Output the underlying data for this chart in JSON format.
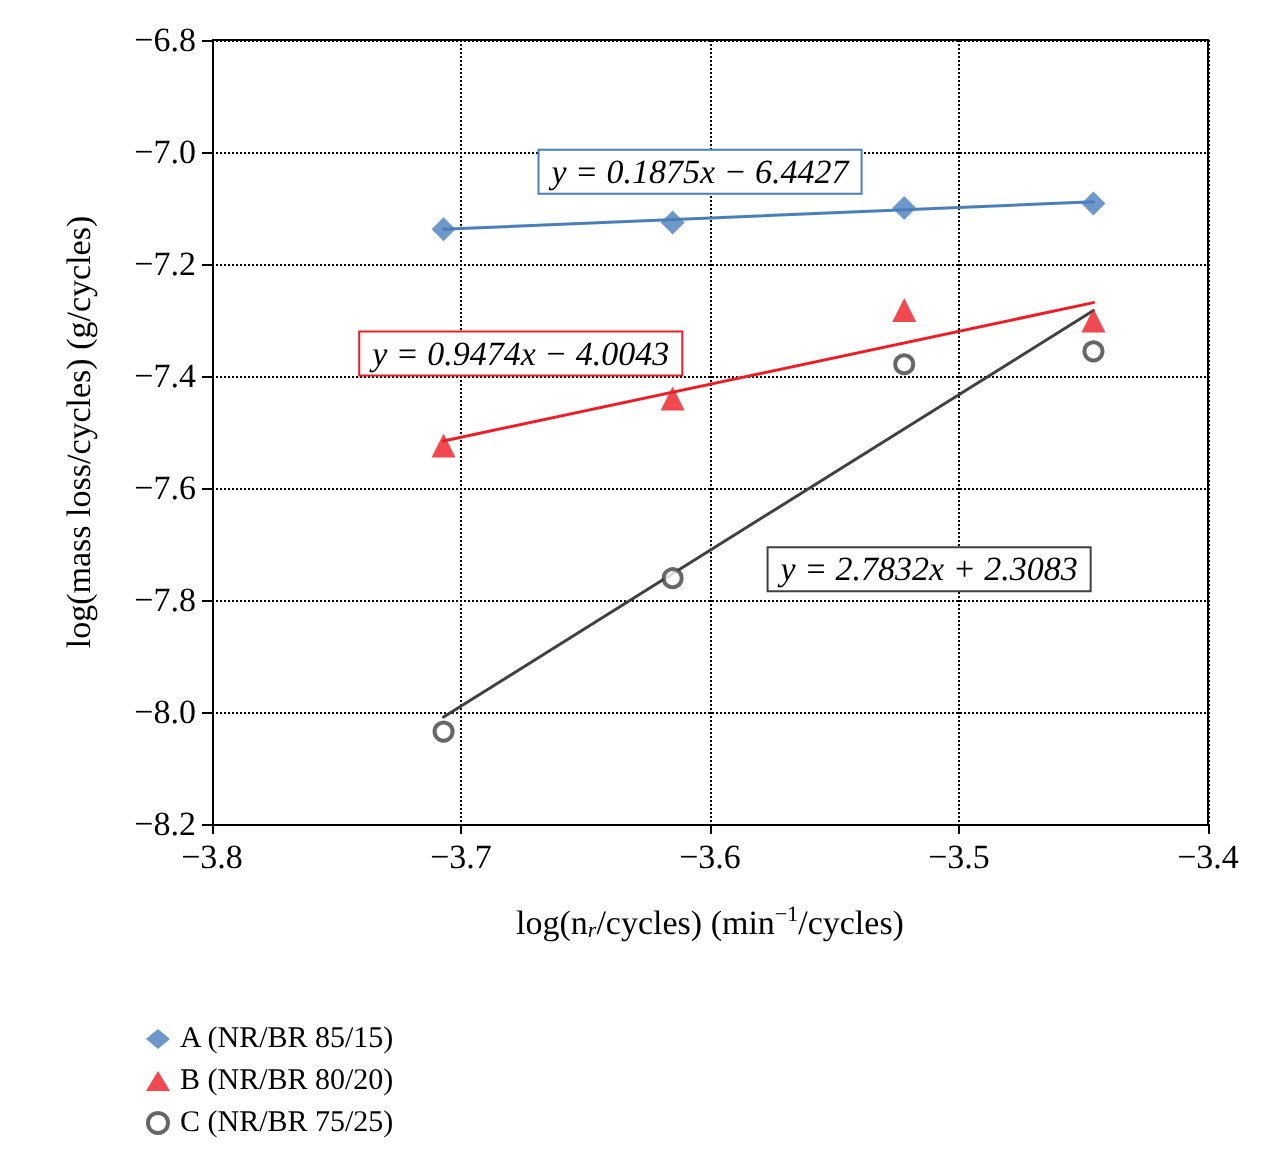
{
  "chart_data": {
    "type": "scatter",
    "xlabel": "log(n$_{r}$/cycles) (min$^{−1}$/cycles)",
    "ylabel": "log(mass loss/cycles) (g/cycles)",
    "xlim": [
      -3.8,
      -3.4
    ],
    "xticks": [
      -3.8,
      -3.7,
      -3.6,
      -3.5,
      -3.4
    ],
    "ylim": [
      -8.2,
      -6.8
    ],
    "yticks": [
      -8.2,
      {
        "value": -8,
        "label": "−8.0"
      },
      -7.8,
      -7.6,
      -7.4,
      -7.2,
      {
        "value": -7,
        "label": "−7.0"
      },
      -6.8
    ],
    "grid": true,
    "legend": "bottom left",
    "series": [
      {
        "name": "A (NR/BR 85/15)",
        "color": "#4a7ebb",
        "marker": "diamond",
        "x": [
          -3.707,
          -3.615,
          -3.522,
          -3.446
        ],
        "values": [
          -7.138,
          -7.126,
          -7.1,
          -7.092
        ]
      },
      {
        "name": "B (NR/BR 80/20)",
        "color": "#ee1c24",
        "marker": "triangle",
        "x": [
          -3.707,
          -3.615,
          -3.522,
          -3.446
        ],
        "values": [
          -7.524,
          -7.44,
          -7.282,
          -7.301
        ]
      },
      {
        "name": "C (NR/BR 75/25)",
        "color": "#404040",
        "marker": "circle",
        "x": [
          -3.707,
          -3.615,
          -3.522,
          -3.446
        ],
        "values": [
          -8.035,
          -7.761,
          -7.379,
          -7.356
        ]
      },
      {
        "type": "line",
        "color": "#4a7ebb",
        "marker": "none",
        "x": [
          -3.707,
          -3.446
        ],
        "values": [
          -7.138,
          -7.089
        ]
      },
      {
        "type": "line",
        "color": "#ee1c24",
        "marker": "none",
        "x": [
          -3.707,
          -3.446
        ],
        "values": [
          -7.516,
          -7.269
        ]
      },
      {
        "type": "line",
        "color": "#404040",
        "marker": "none",
        "x": [
          -3.707,
          -3.446
        ],
        "values": [
          -8.009,
          -7.283
        ]
      }
    ],
    "annotations": [
      "y = 0.1875x − 6.4427",
      "y = 0.9474x − 4.0043",
      "y = 2.7832x + 2.3083"
    ]
  }
}
